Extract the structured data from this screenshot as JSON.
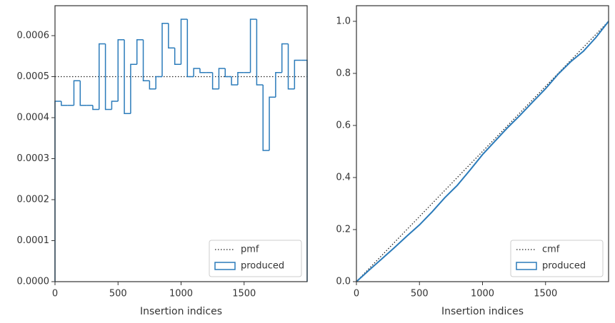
{
  "chart_data": [
    {
      "type": "histogram",
      "xlabel": "Insertion indices",
      "bins": [
        0,
        50,
        100,
        150,
        200,
        250,
        300,
        350,
        400,
        450,
        500,
        550,
        600,
        650,
        700,
        750,
        800,
        850,
        900,
        950,
        1000,
        1050,
        1100,
        1150,
        1200,
        1250,
        1300,
        1350,
        1400,
        1450,
        1500,
        1550,
        1600,
        1650,
        1700,
        1750,
        1800,
        1850,
        1900,
        1950,
        2000
      ],
      "series": [
        {
          "name": "pmf",
          "color": "#222222",
          "style": "dotted",
          "line_value": 0.0005
        },
        {
          "name": "produced",
          "color": "#2b7bba",
          "values": [
            0.00044,
            0.00043,
            0.00043,
            0.00049,
            0.00043,
            0.00043,
            0.00042,
            0.00058,
            0.00042,
            0.00044,
            0.00059,
            0.00041,
            0.00053,
            0.00059,
            0.00049,
            0.00047,
            0.0005,
            0.00063,
            0.00057,
            0.00053,
            0.00064,
            0.0005,
            0.00052,
            0.00051,
            0.00051,
            0.00047,
            0.00052,
            0.0005,
            0.00048,
            0.00051,
            0.00051,
            0.00064,
            0.00048,
            0.00032,
            0.00045,
            0.00051,
            0.00058,
            0.00047,
            0.00054,
            0.00054
          ]
        }
      ],
      "xlim": [
        0,
        2000
      ],
      "xticks": [
        0,
        500,
        1000,
        1500
      ],
      "ylim": [
        0,
        0.000673
      ],
      "yticks": [
        {
          "value": 0,
          "label": "0.0000"
        },
        {
          "value": 0.0001,
          "label": "0.0001"
        },
        {
          "value": 0.0002,
          "label": "0.0002"
        },
        {
          "value": 0.0003,
          "label": "0.0003"
        },
        {
          "value": 0.0004,
          "label": "0.0004"
        },
        {
          "value": 0.0005,
          "label": "0.0005"
        },
        {
          "value": 0.0006,
          "label": "0.0006"
        }
      ],
      "legend": "lower right",
      "grid": false
    },
    {
      "type": "line",
      "xlabel": "Insertion indices",
      "series": [
        {
          "name": "cmf",
          "color": "#222222",
          "style": "dotted",
          "x": [
            0,
            2000
          ],
          "values": [
            0,
            1
          ]
        },
        {
          "name": "produced",
          "color": "#2b7bba",
          "x": [
            0,
            100,
            200,
            300,
            400,
            500,
            600,
            700,
            800,
            900,
            1000,
            1100,
            1200,
            1300,
            1400,
            1500,
            1600,
            1700,
            1800,
            1900,
            2000
          ],
          "values": [
            0,
            0.044,
            0.087,
            0.13,
            0.175,
            0.218,
            0.268,
            0.322,
            0.37,
            0.428,
            0.488,
            0.54,
            0.592,
            0.64,
            0.691,
            0.741,
            0.797,
            0.845,
            0.885,
            0.938,
            1
          ]
        }
      ],
      "xlim": [
        0,
        2000
      ],
      "xticks": [
        0,
        500,
        1000,
        1500
      ],
      "ylim": [
        0,
        1.06
      ],
      "yticks": [
        {
          "value": 0,
          "label": "0.0"
        },
        0.2,
        0.4,
        0.6,
        0.8,
        {
          "value": 1,
          "label": "1.0"
        }
      ],
      "legend": "lower right",
      "grid": false
    }
  ]
}
